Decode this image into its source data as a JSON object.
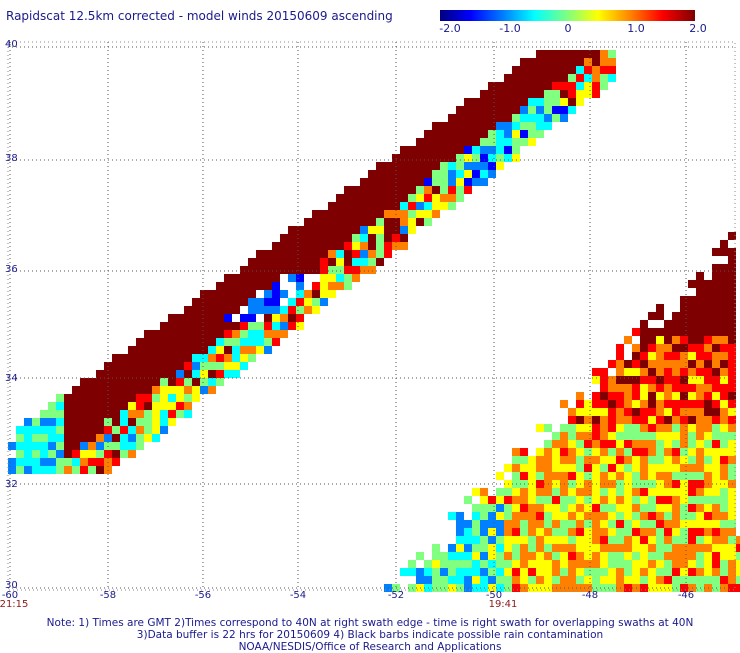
{
  "title": "Rapidscat 12.5km corrected - model winds 20150609 ascending",
  "colorbar": {
    "labels": [
      "-2.0",
      "-1.0",
      "0",
      "1.0",
      "2.0"
    ],
    "min": -2.0,
    "max": 2.0,
    "colors": [
      "#00007f",
      "#0000ff",
      "#0080ff",
      "#00ffff",
      "#80ff80",
      "#ffff00",
      "#ff8000",
      "#ff0000",
      "#7f0000"
    ]
  },
  "axes": {
    "lat_ticks": [
      "40",
      "38",
      "36",
      "34",
      "32",
      "30"
    ],
    "lon_ticks": [
      "-60",
      "-58",
      "-56",
      "-54",
      "-52",
      "-50",
      "-48",
      "-46"
    ],
    "grid": "dotted"
  },
  "time_labels": [
    "21:15",
    "19:41"
  ],
  "notes": [
    "Note: 1) Times are GMT 2)Times correspond to 40N at right swath edge - time is right swath for overlapping swaths at 40N",
    "3)Data buffer is 22 hrs for 20150609 4) Black barbs indicate possible rain contamination",
    "NOAA/NESDIS/Office of Research and Applications"
  ]
}
